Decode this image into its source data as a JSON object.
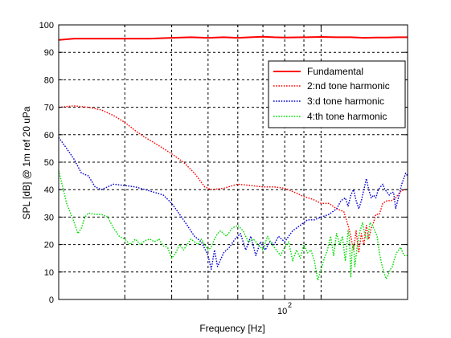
{
  "chart_data": {
    "type": "line",
    "title": "",
    "xlabel": "Frequency [Hz]",
    "ylabel": "SPL [dB] @ 1m ref 20 uPa",
    "x_scale": "log",
    "xlim": [
      20,
      170
    ],
    "ylim": [
      0,
      100
    ],
    "y_ticks": [
      0,
      10,
      20,
      30,
      40,
      50,
      60,
      70,
      80,
      90,
      100
    ],
    "x_tick_label": {
      "base": "10",
      "exponent": "2"
    },
    "grid": true,
    "legend_position": "top-right",
    "series": [
      {
        "name": "Fundamental",
        "color": "#ff0000",
        "style": "solid",
        "points": [
          [
            20,
            94.5
          ],
          [
            22,
            95
          ],
          [
            25,
            95
          ],
          [
            30,
            95
          ],
          [
            35,
            95
          ],
          [
            40,
            95.3
          ],
          [
            45,
            95.5
          ],
          [
            50,
            95.3
          ],
          [
            55,
            95.5
          ],
          [
            60,
            95.3
          ],
          [
            65,
            95.5
          ],
          [
            70,
            95.7
          ],
          [
            75,
            95.5
          ],
          [
            80,
            95.4
          ],
          [
            90,
            95.5
          ],
          [
            100,
            95.6
          ],
          [
            110,
            95.5
          ],
          [
            120,
            95.5
          ],
          [
            130,
            95.3
          ],
          [
            140,
            95.4
          ],
          [
            150,
            95.4
          ],
          [
            160,
            95.5
          ],
          [
            170,
            95.5
          ]
        ]
      },
      {
        "name": "2:nd tone harmonic",
        "color": "#ff0000",
        "style": "dotted",
        "points": [
          [
            20,
            70
          ],
          [
            22,
            70.5
          ],
          [
            24,
            70
          ],
          [
            26,
            69
          ],
          [
            28,
            67
          ],
          [
            30,
            64.5
          ],
          [
            32,
            61.5
          ],
          [
            34,
            59
          ],
          [
            36,
            57
          ],
          [
            38,
            55
          ],
          [
            40,
            53
          ],
          [
            43,
            50
          ],
          [
            46,
            46
          ],
          [
            49,
            41
          ],
          [
            51,
            40
          ],
          [
            55,
            40.5
          ],
          [
            60,
            42
          ],
          [
            65,
            41.5
          ],
          [
            70,
            41
          ],
          [
            75,
            41
          ],
          [
            80,
            40.5
          ],
          [
            85,
            39
          ],
          [
            90,
            37.5
          ],
          [
            95,
            36.5
          ],
          [
            100,
            35
          ],
          [
            105,
            35
          ],
          [
            110,
            33
          ],
          [
            115,
            32
          ],
          [
            118,
            27
          ],
          [
            120,
            23
          ],
          [
            122,
            18
          ],
          [
            124,
            25
          ],
          [
            126,
            17
          ],
          [
            128,
            24
          ],
          [
            130,
            20
          ],
          [
            132,
            27
          ],
          [
            134,
            22
          ],
          [
            136,
            26
          ],
          [
            138,
            28
          ],
          [
            140,
            31
          ],
          [
            143,
            31
          ],
          [
            146,
            35
          ],
          [
            150,
            36
          ],
          [
            154,
            36
          ],
          [
            158,
            37
          ],
          [
            162,
            39
          ],
          [
            166,
            40
          ],
          [
            170,
            40
          ]
        ]
      },
      {
        "name": "3:d tone harmonic",
        "color": "#0000cc",
        "style": "dotted",
        "points": [
          [
            20,
            59
          ],
          [
            21,
            55
          ],
          [
            22,
            51
          ],
          [
            23,
            46
          ],
          [
            24,
            45
          ],
          [
            25,
            41
          ],
          [
            26,
            40
          ],
          [
            27,
            41
          ],
          [
            28,
            42
          ],
          [
            30,
            41.5
          ],
          [
            32,
            41
          ],
          [
            34,
            40
          ],
          [
            36,
            39
          ],
          [
            38,
            38
          ],
          [
            40,
            35
          ],
          [
            42,
            31
          ],
          [
            44,
            27
          ],
          [
            46,
            23
          ],
          [
            48,
            21
          ],
          [
            50,
            16
          ],
          [
            51,
            11
          ],
          [
            52,
            18
          ],
          [
            53,
            12
          ],
          [
            55,
            17
          ],
          [
            57,
            19
          ],
          [
            59,
            22
          ],
          [
            61,
            24
          ],
          [
            63,
            18
          ],
          [
            65,
            23
          ],
          [
            67,
            16
          ],
          [
            69,
            21
          ],
          [
            71,
            18
          ],
          [
            73,
            21
          ],
          [
            75,
            20
          ],
          [
            77,
            23
          ],
          [
            80,
            21
          ],
          [
            84,
            25
          ],
          [
            88,
            27
          ],
          [
            92,
            29
          ],
          [
            96,
            29
          ],
          [
            100,
            30
          ],
          [
            105,
            31
          ],
          [
            110,
            33
          ],
          [
            113,
            36
          ],
          [
            116,
            37
          ],
          [
            118,
            34
          ],
          [
            120,
            38
          ],
          [
            122,
            40
          ],
          [
            124,
            36
          ],
          [
            126,
            33
          ],
          [
            128,
            36
          ],
          [
            130,
            40
          ],
          [
            132,
            44
          ],
          [
            134,
            40
          ],
          [
            136,
            37
          ],
          [
            138,
            38
          ],
          [
            140,
            37
          ],
          [
            142,
            40
          ],
          [
            144,
            41
          ],
          [
            146,
            42
          ],
          [
            148,
            40
          ],
          [
            150,
            39
          ],
          [
            152,
            38
          ],
          [
            154,
            39
          ],
          [
            156,
            39
          ],
          [
            158,
            33
          ],
          [
            160,
            36
          ],
          [
            162,
            39
          ],
          [
            164,
            42
          ],
          [
            166,
            44
          ],
          [
            168,
            46
          ],
          [
            170,
            45
          ]
        ]
      },
      {
        "name": "4:th tone harmonic",
        "color": "#00dd00",
        "style": "dotted",
        "points": [
          [
            20,
            47
          ],
          [
            21,
            35
          ],
          [
            22,
            28
          ],
          [
            22.5,
            24
          ],
          [
            23,
            26
          ],
          [
            23.5,
            30
          ],
          [
            24,
            31.5
          ],
          [
            25,
            31
          ],
          [
            26,
            31
          ],
          [
            27,
            30
          ],
          [
            28,
            26
          ],
          [
            29,
            23
          ],
          [
            30,
            22
          ],
          [
            31,
            20
          ],
          [
            32,
            22
          ],
          [
            33,
            20
          ],
          [
            34,
            21.5
          ],
          [
            35,
            22
          ],
          [
            36,
            21
          ],
          [
            37,
            22
          ],
          [
            38,
            19.5
          ],
          [
            39,
            19
          ],
          [
            40,
            15
          ],
          [
            41,
            17
          ],
          [
            42,
            20
          ],
          [
            43,
            18
          ],
          [
            44,
            20
          ],
          [
            45,
            22
          ],
          [
            46,
            21
          ],
          [
            47,
            20
          ],
          [
            48,
            22
          ],
          [
            49,
            20
          ],
          [
            50,
            18
          ],
          [
            51,
            19
          ],
          [
            52,
            22
          ],
          [
            53,
            24
          ],
          [
            54,
            25
          ],
          [
            56,
            23
          ],
          [
            58,
            26
          ],
          [
            60,
            27
          ],
          [
            62,
            25
          ],
          [
            64,
            21
          ],
          [
            66,
            22
          ],
          [
            68,
            20
          ],
          [
            70,
            18
          ],
          [
            72,
            23
          ],
          [
            74,
            20
          ],
          [
            76,
            18
          ],
          [
            78,
            16
          ],
          [
            80,
            19
          ],
          [
            82,
            21
          ],
          [
            84,
            14
          ],
          [
            86,
            18
          ],
          [
            88,
            15
          ],
          [
            90,
            20
          ],
          [
            92,
            17
          ],
          [
            94,
            18
          ],
          [
            96,
            14
          ],
          [
            98,
            7
          ],
          [
            100,
            11
          ],
          [
            102,
            15
          ],
          [
            104,
            18
          ],
          [
            106,
            23
          ],
          [
            108,
            16
          ],
          [
            110,
            24
          ],
          [
            112,
            20
          ],
          [
            114,
            23
          ],
          [
            116,
            14
          ],
          [
            118,
            25
          ],
          [
            119,
            22
          ],
          [
            120,
            8
          ],
          [
            121,
            18
          ],
          [
            122,
            20
          ],
          [
            123,
            12
          ],
          [
            125,
            20
          ],
          [
            127,
            25
          ],
          [
            129,
            28
          ],
          [
            131,
            23
          ],
          [
            133,
            22
          ],
          [
            135,
            28
          ],
          [
            137,
            27
          ],
          [
            139,
            25
          ],
          [
            141,
            23
          ],
          [
            143,
            17
          ],
          [
            145,
            13
          ],
          [
            147,
            10
          ],
          [
            149,
            7.5
          ],
          [
            151,
            9
          ],
          [
            153,
            11
          ],
          [
            155,
            12
          ],
          [
            157,
            15
          ],
          [
            159,
            17
          ],
          [
            161,
            18
          ],
          [
            163,
            19
          ],
          [
            165,
            17
          ],
          [
            167,
            16
          ],
          [
            170,
            16
          ]
        ]
      }
    ]
  }
}
